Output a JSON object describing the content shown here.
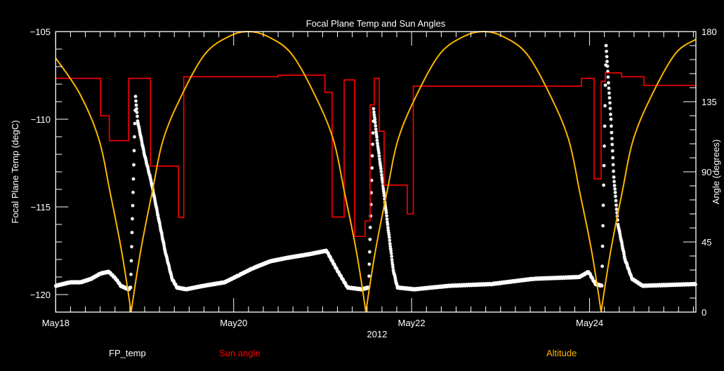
{
  "chart_data": {
    "type": "line",
    "title": "Focal Plane Temp and Sun Angles",
    "xlabel": "2012",
    "ylabel_left": "Focal Plane Temp (degC)",
    "ylabel_right": "Angle (degrees)",
    "xlim": [
      "2012-05-18 00:00",
      "2012-05-25 04:41"
    ],
    "ylim_left": [
      -121,
      -105
    ],
    "ylim_right": [
      0,
      180
    ],
    "x_ticks": [
      {
        "date": "2012-05-18 00:00",
        "label": "May18"
      },
      {
        "date": "2012-05-20 00:00",
        "label": "May20"
      },
      {
        "date": "2012-05-22 00:00",
        "label": "May22"
      },
      {
        "date": "2012-05-24 00:00",
        "label": "May24"
      }
    ],
    "y_ticks_left": [
      "-105",
      "-110",
      "-115",
      "-120"
    ],
    "y_ticks_left_values": [
      -105,
      -110,
      -115,
      -120
    ],
    "y_ticks_right": [
      "180",
      "135",
      "90",
      "45",
      "0"
    ],
    "y_ticks_right_values": [
      180,
      135,
      90,
      45,
      0
    ],
    "grid": false,
    "legend_position": "bottom",
    "series": [
      {
        "name": "FP_temp",
        "axis": "left",
        "color": "#ffffff",
        "marker": "asterisk",
        "points": [
          [
            "2012-05-18 00:00",
            -119.5
          ],
          [
            "2012-05-18 03:55",
            -119.3
          ],
          [
            "2012-05-18 06:46",
            -119.3
          ],
          [
            "2012-05-18 09:36",
            -119.1
          ],
          [
            "2012-05-18 12:04",
            -118.8
          ],
          [
            "2012-05-18 14:20",
            -118.7
          ],
          [
            "2012-05-18 16:14",
            -119.1
          ],
          [
            "2012-05-18 17:34",
            -119.5
          ],
          [
            "2012-05-18 19:39",
            -119.7
          ],
          [
            "2012-05-18 20:13",
            -119.6
          ],
          [
            "2012-05-18 21:32",
            -108.7
          ],
          [
            "2012-05-18 22:06",
            -110.1
          ],
          [
            "2012-05-18 23:49",
            -111.9
          ],
          [
            "2012-05-19 01:42",
            -113.5
          ],
          [
            "2012-05-19 03:36",
            -115.5
          ],
          [
            "2012-05-19 05:30",
            -117.5
          ],
          [
            "2012-05-19 07:23",
            -119.1
          ],
          [
            "2012-05-19 08:43",
            -119.6
          ],
          [
            "2012-05-19 11:10",
            -119.7
          ],
          [
            "2012-05-19 15:55",
            -119.5
          ],
          [
            "2012-05-19 21:36",
            -119.3
          ],
          [
            "2012-05-20 01:23",
            -118.9
          ],
          [
            "2012-05-20 05:10",
            -118.5
          ],
          [
            "2012-05-20 09:54",
            -118.1
          ],
          [
            "2012-05-20 14:38",
            -117.9
          ],
          [
            "2012-05-20 20:19",
            -117.7
          ],
          [
            "2012-05-21 01:03",
            -117.5
          ],
          [
            "2012-05-21 03:54",
            -118.6
          ],
          [
            "2012-05-21 06:44",
            -119.6
          ],
          [
            "2012-05-21 10:32",
            -119.7
          ],
          [
            "2012-05-21 12:25",
            -119.6
          ],
          [
            "2012-05-21 13:45",
            -109.4
          ],
          [
            "2012-05-21 14:42",
            -111.2
          ],
          [
            "2012-05-21 16:11",
            -113.6
          ],
          [
            "2012-05-21 17:32",
            -116.0
          ],
          [
            "2012-05-21 19:03",
            -118.6
          ],
          [
            "2012-05-21 20:10",
            -119.6
          ],
          [
            "2012-05-22 00:44",
            -119.7
          ],
          [
            "2012-05-22 10:12",
            -119.5
          ],
          [
            "2012-05-22 21:34",
            -119.4
          ],
          [
            "2012-05-23 08:56",
            -119.1
          ],
          [
            "2012-05-23 21:15",
            -119.0
          ],
          [
            "2012-05-23 23:43",
            -118.7
          ],
          [
            "2012-05-24 01:36",
            -119.4
          ],
          [
            "2012-05-24 03:19",
            -119.5
          ],
          [
            "2012-05-24 04:27",
            -105.8
          ],
          [
            "2012-05-24 05:46",
            -110.0
          ],
          [
            "2012-05-24 06:32",
            -113.3
          ],
          [
            "2012-05-24 07:40",
            -116.0
          ],
          [
            "2012-05-24 09:34",
            -118.0
          ],
          [
            "2012-05-24 11:27",
            -119.1
          ],
          [
            "2012-05-24 14:18",
            -119.5
          ],
          [
            "2012-05-25 04:41",
            -119.4
          ]
        ]
      },
      {
        "name": "Sun angle",
        "axis": "right",
        "color": "#ff0000",
        "style": "step",
        "points": [
          [
            "2012-05-18 00:00",
            150
          ],
          [
            "2012-05-18 12:07",
            126
          ],
          [
            "2012-05-18 14:28",
            110
          ],
          [
            "2012-05-18 19:42",
            150
          ],
          [
            "2012-05-19 01:34",
            93.7
          ],
          [
            "2012-05-19 09:05",
            60.8
          ],
          [
            "2012-05-19 10:33",
            151
          ],
          [
            "2012-05-20 12:00",
            152
          ],
          [
            "2012-05-21 00:37",
            141
          ],
          [
            "2012-05-21 02:34",
            61
          ],
          [
            "2012-05-21 05:48",
            149
          ],
          [
            "2012-05-21 08:38",
            48.6
          ],
          [
            "2012-05-21 11:28",
            58.5
          ],
          [
            "2012-05-21 12:48",
            133
          ],
          [
            "2012-05-21 13:56",
            150
          ],
          [
            "2012-05-21 15:16",
            116
          ],
          [
            "2012-05-21 16:35",
            81.5
          ],
          [
            "2012-05-21 22:50",
            63
          ],
          [
            "2012-05-22 00:27",
            145
          ],
          [
            "2012-05-23 21:49",
            150
          ],
          [
            "2012-05-24 01:13",
            85.5
          ],
          [
            "2012-05-24 03:07",
            148
          ],
          [
            "2012-05-24 04:15",
            153.5
          ],
          [
            "2012-05-24 08:37",
            151
          ],
          [
            "2012-05-24 14:40",
            145.5
          ],
          [
            "2012-05-25 04:41",
            145.5
          ]
        ]
      },
      {
        "name": "Altitude",
        "axis": "right",
        "color": "#ffb400",
        "points": [
          [
            "2012-05-18 00:00",
            163
          ],
          [
            "2012-05-18 06:31",
            140
          ],
          [
            "2012-05-18 11:38",
            111
          ],
          [
            "2012-05-18 14:40",
            77
          ],
          [
            "2012-05-18 17:47",
            39
          ],
          [
            "2012-05-18 20:21",
            0
          ],
          [
            "2012-05-18 22:54",
            39
          ],
          [
            "2012-05-19 02:02",
            77
          ],
          [
            "2012-05-19 05:03",
            111
          ],
          [
            "2012-05-19 10:10",
            140
          ],
          [
            "2012-05-19 16:25",
            166
          ],
          [
            "2012-05-19 22:52",
            177
          ],
          [
            "2012-05-20 03:56",
            180
          ],
          [
            "2012-05-20 09:03",
            177
          ],
          [
            "2012-05-20 15:30",
            166
          ],
          [
            "2012-05-20 21:45",
            140
          ],
          [
            "2012-05-21 02:51",
            111
          ],
          [
            "2012-05-21 05:53",
            77
          ],
          [
            "2012-05-21 09:06",
            39
          ],
          [
            "2012-05-21 11:40",
            0
          ],
          [
            "2012-05-21 14:13",
            39
          ],
          [
            "2012-05-21 17:21",
            77
          ],
          [
            "2012-05-21 20:23",
            111
          ],
          [
            "2012-05-22 01:30",
            140
          ],
          [
            "2012-05-22 07:45",
            166
          ],
          [
            "2012-05-22 14:11",
            177
          ],
          [
            "2012-05-22 19:23",
            180
          ],
          [
            "2012-05-23 00:30",
            177
          ],
          [
            "2012-05-23 06:57",
            166
          ],
          [
            "2012-05-23 13:12",
            140
          ],
          [
            "2012-05-23 18:19",
            111
          ],
          [
            "2012-05-23 21:21",
            77
          ],
          [
            "2012-05-24 00:34",
            39
          ],
          [
            "2012-05-24 03:07",
            0
          ],
          [
            "2012-05-24 05:41",
            39
          ],
          [
            "2012-05-24 08:48",
            77
          ],
          [
            "2012-05-24 11:50",
            111
          ],
          [
            "2012-05-24 16:57",
            140
          ],
          [
            "2012-05-24 23:12",
            166
          ],
          [
            "2012-05-25 04:41",
            175
          ]
        ]
      }
    ]
  },
  "legend": {
    "fp_temp": "FP_temp",
    "sun_angle": "Sun angle",
    "altitude": "Altitude"
  }
}
